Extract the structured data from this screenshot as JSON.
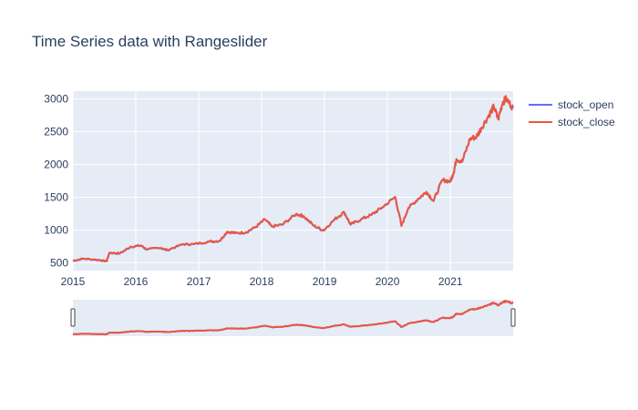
{
  "chart_data": {
    "type": "line",
    "title": "Time Series data with Rangeslider",
    "xlabel": "",
    "ylabel": "",
    "x_ticks": [
      "2015",
      "2016",
      "2017",
      "2018",
      "2019",
      "2020",
      "2021"
    ],
    "y_ticks": [
      "500",
      "1000",
      "1500",
      "2000",
      "2500",
      "3000"
    ],
    "x_range": [
      "2015-01-01",
      "2021-12-31"
    ],
    "y_range": [
      380,
      3120
    ],
    "grid": true,
    "legend_position": "top-right",
    "rangeslider": true,
    "series": [
      {
        "name": "stock_open",
        "color": "#636efa",
        "points": [
          [
            "2015-01-01",
            525
          ],
          [
            "2015-03-01",
            560
          ],
          [
            "2015-06-01",
            540
          ],
          [
            "2015-07-15",
            520
          ],
          [
            "2015-08-01",
            650
          ],
          [
            "2015-10-01",
            640
          ],
          [
            "2015-12-01",
            740
          ],
          [
            "2016-02-01",
            760
          ],
          [
            "2016-03-01",
            705
          ],
          [
            "2016-06-01",
            720
          ],
          [
            "2016-07-01",
            690
          ],
          [
            "2016-10-01",
            780
          ],
          [
            "2016-12-01",
            780
          ],
          [
            "2017-03-01",
            820
          ],
          [
            "2017-05-01",
            830
          ],
          [
            "2017-06-15",
            970
          ],
          [
            "2017-08-01",
            950
          ],
          [
            "2017-10-01",
            960
          ],
          [
            "2017-12-01",
            1050
          ],
          [
            "2018-01-20",
            1160
          ],
          [
            "2018-03-01",
            1050
          ],
          [
            "2018-05-01",
            1080
          ],
          [
            "2018-07-20",
            1240
          ],
          [
            "2018-09-01",
            1210
          ],
          [
            "2018-11-01",
            1060
          ],
          [
            "2018-12-25",
            990
          ],
          [
            "2019-03-01",
            1160
          ],
          [
            "2019-04-25",
            1270
          ],
          [
            "2019-06-01",
            1080
          ],
          [
            "2019-08-01",
            1160
          ],
          [
            "2019-10-01",
            1230
          ],
          [
            "2019-12-01",
            1340
          ],
          [
            "2020-02-15",
            1500
          ],
          [
            "2020-03-23",
            1060
          ],
          [
            "2020-05-01",
            1330
          ],
          [
            "2020-07-01",
            1480
          ],
          [
            "2020-08-15",
            1580
          ],
          [
            "2020-09-25",
            1440
          ],
          [
            "2020-11-15",
            1760
          ],
          [
            "2021-01-01",
            1740
          ],
          [
            "2021-01-20",
            1880
          ],
          [
            "2021-02-05",
            2080
          ],
          [
            "2021-03-10",
            2040
          ],
          [
            "2021-04-25",
            2390
          ],
          [
            "2021-06-01",
            2420
          ],
          [
            "2021-07-01",
            2560
          ],
          [
            "2021-08-15",
            2760
          ],
          [
            "2021-09-10",
            2880
          ],
          [
            "2021-10-05",
            2690
          ],
          [
            "2021-11-01",
            2950
          ],
          [
            "2021-11-20",
            3000
          ],
          [
            "2021-12-31",
            2860
          ]
        ]
      },
      {
        "name": "stock_close",
        "color": "#ef553b",
        "points": [
          [
            "2015-01-01",
            530
          ],
          [
            "2015-03-01",
            565
          ],
          [
            "2015-06-01",
            545
          ],
          [
            "2015-07-15",
            522
          ],
          [
            "2015-08-01",
            655
          ],
          [
            "2015-10-01",
            645
          ],
          [
            "2015-12-01",
            745
          ],
          [
            "2016-02-01",
            765
          ],
          [
            "2016-03-01",
            710
          ],
          [
            "2016-06-01",
            725
          ],
          [
            "2016-07-01",
            695
          ],
          [
            "2016-10-01",
            785
          ],
          [
            "2016-12-01",
            785
          ],
          [
            "2017-03-01",
            825
          ],
          [
            "2017-05-01",
            835
          ],
          [
            "2017-06-15",
            975
          ],
          [
            "2017-08-01",
            955
          ],
          [
            "2017-10-01",
            965
          ],
          [
            "2017-12-01",
            1055
          ],
          [
            "2018-01-20",
            1165
          ],
          [
            "2018-03-01",
            1055
          ],
          [
            "2018-05-01",
            1085
          ],
          [
            "2018-07-20",
            1245
          ],
          [
            "2018-09-01",
            1215
          ],
          [
            "2018-11-01",
            1065
          ],
          [
            "2018-12-25",
            995
          ],
          [
            "2019-03-01",
            1165
          ],
          [
            "2019-04-25",
            1275
          ],
          [
            "2019-06-01",
            1085
          ],
          [
            "2019-08-01",
            1165
          ],
          [
            "2019-10-01",
            1235
          ],
          [
            "2019-12-01",
            1345
          ],
          [
            "2020-02-15",
            1505
          ],
          [
            "2020-03-23",
            1065
          ],
          [
            "2020-05-01",
            1335
          ],
          [
            "2020-07-01",
            1485
          ],
          [
            "2020-08-15",
            1585
          ],
          [
            "2020-09-25",
            1445
          ],
          [
            "2020-11-15",
            1765
          ],
          [
            "2021-01-01",
            1745
          ],
          [
            "2021-01-20",
            1885
          ],
          [
            "2021-02-05",
            2085
          ],
          [
            "2021-03-10",
            2045
          ],
          [
            "2021-04-25",
            2395
          ],
          [
            "2021-06-01",
            2425
          ],
          [
            "2021-07-01",
            2565
          ],
          [
            "2021-08-15",
            2765
          ],
          [
            "2021-09-10",
            2885
          ],
          [
            "2021-10-05",
            2695
          ],
          [
            "2021-11-01",
            2955
          ],
          [
            "2021-11-20",
            3005
          ],
          [
            "2021-12-31",
            2865
          ]
        ]
      }
    ]
  }
}
